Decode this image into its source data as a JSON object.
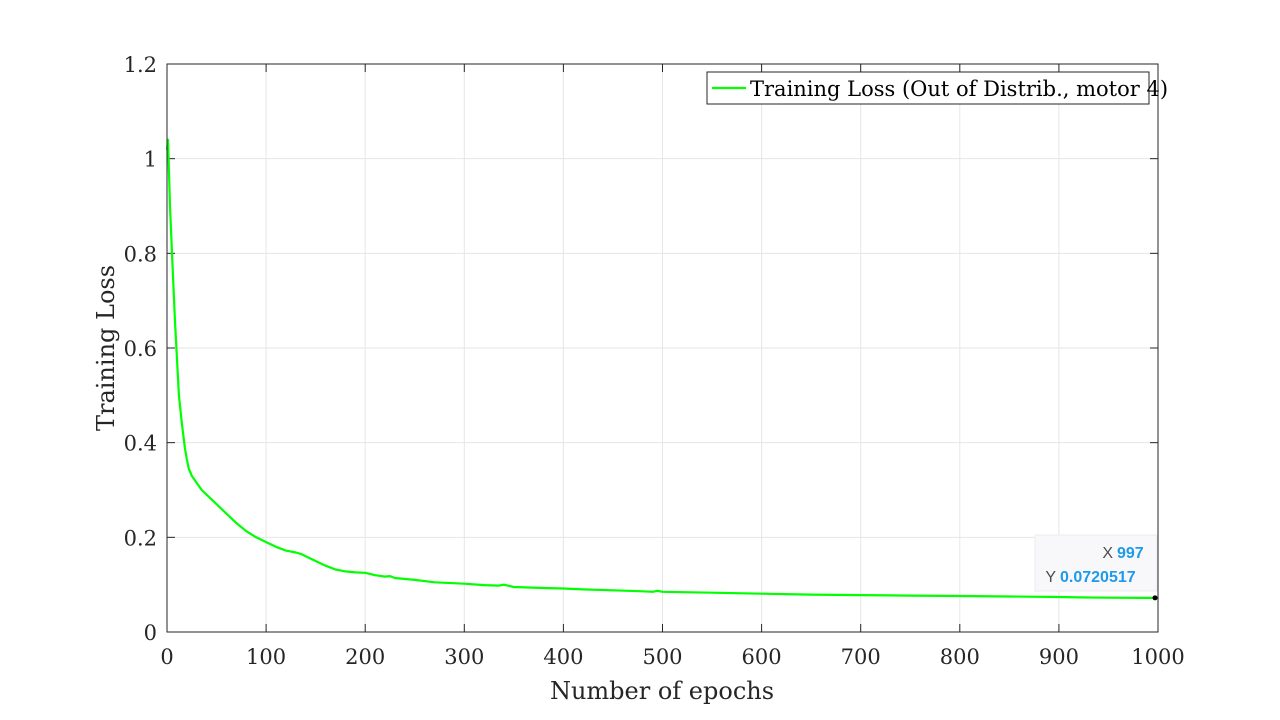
{
  "chart_data": {
    "type": "line",
    "title": "",
    "xlabel": "Number of epochs",
    "ylabel": "Training Loss",
    "xlim": [
      0,
      1000
    ],
    "ylim": [
      0,
      1.2
    ],
    "xticks": [
      0,
      100,
      200,
      300,
      400,
      500,
      600,
      700,
      800,
      900,
      1000
    ],
    "xtick_labels": [
      "0",
      "100",
      "200",
      "300",
      "400",
      "500",
      "600",
      "700",
      "800",
      "900",
      "1000"
    ],
    "yticks": [
      0,
      0.2,
      0.4,
      0.6,
      0.8,
      1.0,
      1.2
    ],
    "ytick_labels": [
      "0",
      "0.2",
      "0.4",
      "0.6",
      "0.8",
      "1",
      "1.2"
    ],
    "grid": true,
    "legend_position": "top-right",
    "series": [
      {
        "name": "Training Loss (Out of Distrib., motor 4)",
        "color": "#00ff00",
        "x": [
          0,
          1,
          2,
          3,
          5,
          8,
          10,
          12,
          15,
          18,
          20,
          22,
          25,
          30,
          35,
          40,
          50,
          60,
          70,
          80,
          90,
          100,
          110,
          120,
          130,
          135,
          140,
          150,
          160,
          170,
          180,
          190,
          200,
          210,
          220,
          225,
          230,
          250,
          270,
          300,
          320,
          335,
          340,
          350,
          380,
          400,
          420,
          450,
          480,
          490,
          495,
          500,
          550,
          600,
          650,
          700,
          750,
          800,
          850,
          900,
          920,
          950,
          997
        ],
        "y": [
          1.02,
          1.04,
          0.97,
          0.9,
          0.8,
          0.66,
          0.58,
          0.5,
          0.44,
          0.39,
          0.365,
          0.345,
          0.33,
          0.315,
          0.3,
          0.29,
          0.27,
          0.25,
          0.23,
          0.213,
          0.2,
          0.19,
          0.18,
          0.172,
          0.168,
          0.165,
          0.16,
          0.15,
          0.14,
          0.132,
          0.128,
          0.126,
          0.125,
          0.12,
          0.117,
          0.118,
          0.114,
          0.11,
          0.105,
          0.102,
          0.099,
          0.098,
          0.1,
          0.095,
          0.093,
          0.092,
          0.09,
          0.088,
          0.086,
          0.085,
          0.087,
          0.085,
          0.083,
          0.081,
          0.079,
          0.078,
          0.077,
          0.076,
          0.075,
          0.074,
          0.073,
          0.0725,
          0.0720517
        ]
      }
    ],
    "datatip": {
      "x_key": "X",
      "x_value": "997",
      "y_key": "Y",
      "y_value": "0.0720517",
      "point": [
        997,
        0.0720517
      ]
    }
  }
}
